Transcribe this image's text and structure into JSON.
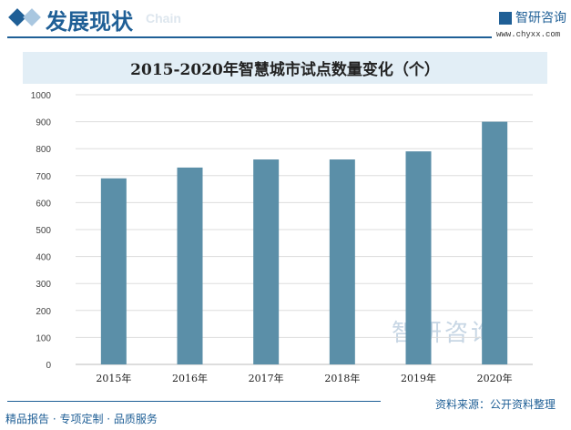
{
  "header": {
    "title": "发展现状",
    "subtitle": "Chain",
    "brand": "智研咨询",
    "url": "www.chyxx.com"
  },
  "footer": {
    "slogan": "精品报告 · 专项定制 · 品质服务",
    "source": "资料来源：公开资料整理",
    "watermark": "智研咨询"
  },
  "colors": {
    "bar": "#5b8fa8",
    "accent": "#1f5f96",
    "title_band": "#e2eef6"
  },
  "chart_data": {
    "type": "bar",
    "title": "2015-2020年智慧城市试点数量变化（个）",
    "categories": [
      "2015年",
      "2016年",
      "2017年",
      "2018年",
      "2019年",
      "2020年"
    ],
    "values": [
      690,
      730,
      760,
      760,
      790,
      900
    ],
    "ylim": [
      0,
      1000
    ],
    "yticks": [
      0,
      100,
      200,
      300,
      400,
      500,
      600,
      700,
      800,
      900,
      1000
    ],
    "grid": true,
    "xlabel": "",
    "ylabel": ""
  }
}
